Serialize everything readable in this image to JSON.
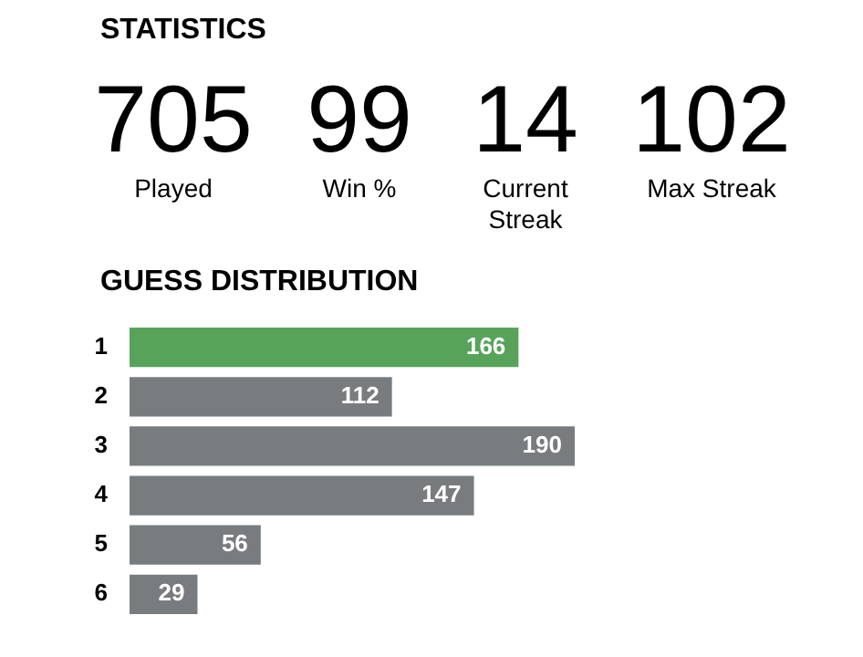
{
  "chart_data": [
    {
      "type": "other",
      "title": "STATISTICS",
      "categories": [
        "Played",
        "Win %",
        "Current Streak",
        "Max Streak"
      ],
      "values": [
        705,
        99,
        14,
        102
      ],
      "value_labels": [
        "705",
        "99",
        "14",
        "102"
      ]
    },
    {
      "type": "bar",
      "title": "GUESS DISTRIBUTION",
      "orientation": "horizontal",
      "categories": [
        "1",
        "2",
        "3",
        "4",
        "5",
        "6"
      ],
      "values": [
        166,
        112,
        190,
        147,
        56,
        29
      ],
      "colors": [
        "#57a35a",
        "#787c7e",
        "#787c7e",
        "#787c7e",
        "#787c7e",
        "#787c7e"
      ],
      "data_labels": true
    }
  ]
}
